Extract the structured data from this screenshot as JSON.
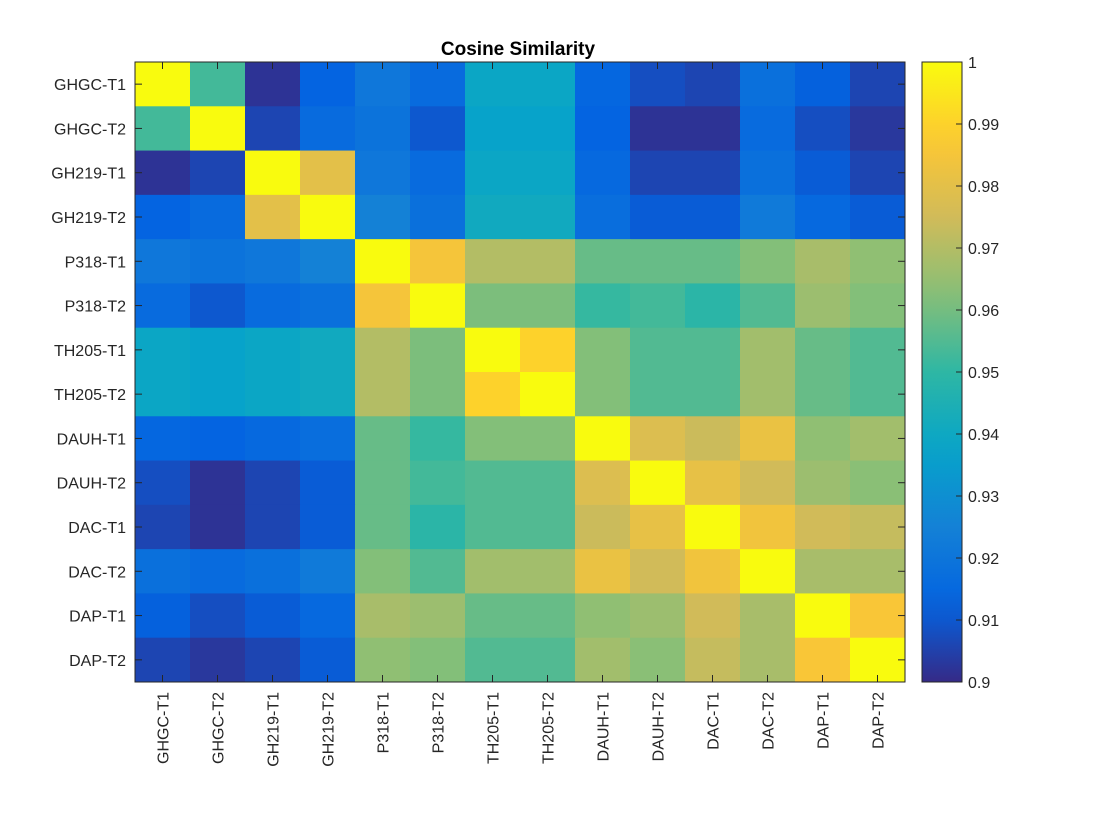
{
  "chart_data": {
    "type": "heatmap",
    "title": "Cosine Similarity",
    "row_labels": [
      "GHGC-T1",
      "GHGC-T2",
      "GH219-T1",
      "GH219-T2",
      "P318-T1",
      "P318-T2",
      "TH205-T1",
      "TH205-T2",
      "DAUH-T1",
      "DAUH-T2",
      "DAC-T1",
      "DAC-T2",
      "DAP-T1",
      "DAP-T2"
    ],
    "col_labels": [
      "GHGC-T1",
      "GHGC-T2",
      "GH219-T1",
      "GH219-T2",
      "P318-T1",
      "P318-T2",
      "TH205-T1",
      "TH205-T2",
      "DAUH-T1",
      "DAUH-T2",
      "DAC-T1",
      "DAC-T2",
      "DAP-T1",
      "DAP-T2"
    ],
    "values": [
      [
        1.0,
        0.953,
        0.902,
        0.913,
        0.921,
        0.916,
        0.939,
        0.939,
        0.914,
        0.908,
        0.906,
        0.918,
        0.912,
        0.906
      ],
      [
        0.953,
        1.0,
        0.906,
        0.916,
        0.919,
        0.91,
        0.937,
        0.937,
        0.913,
        0.902,
        0.902,
        0.916,
        0.908,
        0.903
      ],
      [
        0.902,
        0.906,
        1.0,
        0.98,
        0.921,
        0.916,
        0.939,
        0.939,
        0.915,
        0.906,
        0.906,
        0.918,
        0.911,
        0.906
      ],
      [
        0.913,
        0.916,
        0.98,
        1.0,
        0.925,
        0.918,
        0.941,
        0.941,
        0.917,
        0.911,
        0.911,
        0.922,
        0.915,
        0.911
      ],
      [
        0.921,
        0.919,
        0.921,
        0.925,
        1.0,
        0.985,
        0.97,
        0.97,
        0.958,
        0.958,
        0.958,
        0.962,
        0.968,
        0.964
      ],
      [
        0.916,
        0.91,
        0.916,
        0.918,
        0.985,
        1.0,
        0.961,
        0.961,
        0.951,
        0.953,
        0.949,
        0.955,
        0.966,
        0.962
      ],
      [
        0.939,
        0.937,
        0.939,
        0.941,
        0.97,
        0.961,
        1.0,
        0.99,
        0.962,
        0.955,
        0.955,
        0.967,
        0.958,
        0.955
      ],
      [
        0.939,
        0.937,
        0.939,
        0.941,
        0.97,
        0.961,
        0.99,
        1.0,
        0.962,
        0.955,
        0.955,
        0.967,
        0.958,
        0.955
      ],
      [
        0.914,
        0.913,
        0.915,
        0.917,
        0.958,
        0.951,
        0.962,
        0.962,
        1.0,
        0.978,
        0.974,
        0.982,
        0.964,
        0.967
      ],
      [
        0.908,
        0.902,
        0.906,
        0.911,
        0.958,
        0.953,
        0.955,
        0.955,
        0.978,
        1.0,
        0.981,
        0.975,
        0.966,
        0.963
      ],
      [
        0.906,
        0.902,
        0.906,
        0.911,
        0.958,
        0.949,
        0.955,
        0.955,
        0.974,
        0.981,
        1.0,
        0.984,
        0.975,
        0.973
      ],
      [
        0.918,
        0.916,
        0.918,
        0.922,
        0.962,
        0.955,
        0.967,
        0.967,
        0.982,
        0.975,
        0.984,
        1.0,
        0.968,
        0.968
      ],
      [
        0.912,
        0.908,
        0.911,
        0.915,
        0.968,
        0.966,
        0.958,
        0.958,
        0.964,
        0.966,
        0.975,
        0.968,
        1.0,
        0.986
      ],
      [
        0.906,
        0.903,
        0.906,
        0.911,
        0.964,
        0.962,
        0.955,
        0.955,
        0.967,
        0.963,
        0.973,
        0.968,
        0.986,
        1.0
      ]
    ],
    "colorbar": {
      "range": [
        0.9,
        1.0
      ],
      "ticks": [
        0.9,
        0.91,
        0.92,
        0.93,
        0.94,
        0.95,
        0.96,
        0.97,
        0.98,
        0.99,
        1.0
      ],
      "tick_labels": [
        "0.9",
        "0.91",
        "0.92",
        "0.93",
        "0.94",
        "0.95",
        "0.96",
        "0.97",
        "0.98",
        "0.99",
        "1"
      ],
      "colormap": "parula",
      "position": "right"
    },
    "grid": false,
    "xlabel": "",
    "ylabel": ""
  }
}
